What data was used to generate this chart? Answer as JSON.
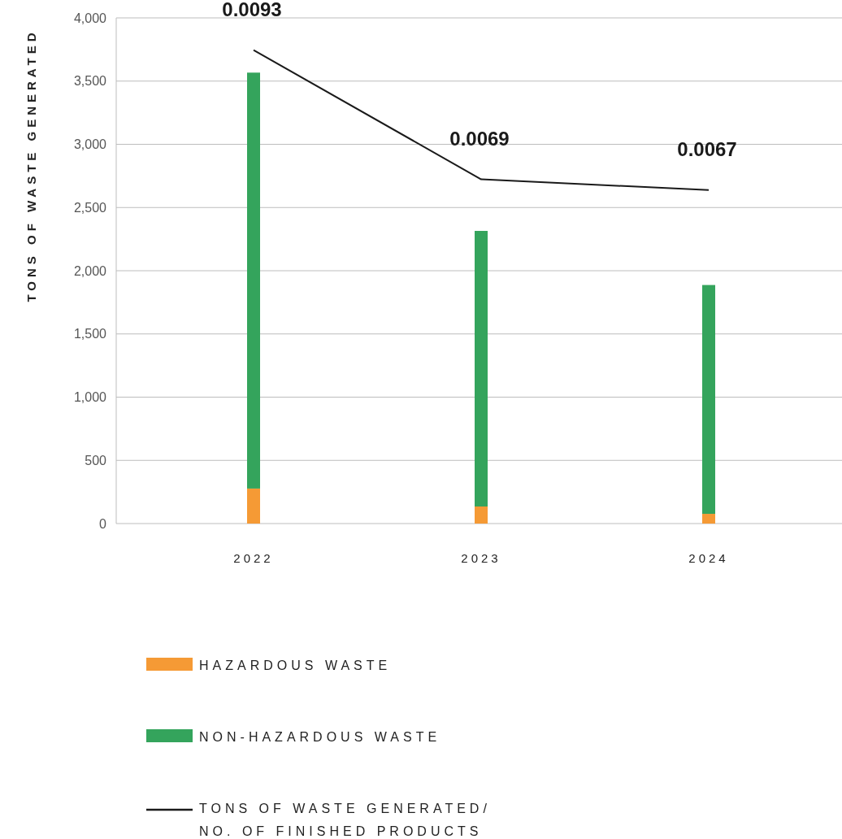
{
  "chart_data": {
    "type": "bar",
    "ylabel": "TONS OF WASTE GENERATED",
    "categories": [
      "2022",
      "2023",
      "2024"
    ],
    "stacked": true,
    "series": [
      {
        "name": "HAZARDOUS WASTE",
        "color": "#f59a35",
        "values": [
          277,
          135,
          77
        ]
      },
      {
        "name": "NON-HAZARDOUS WASTE",
        "color": "#34a45c",
        "values": [
          3290,
          2180,
          1810
        ]
      },
      {
        "name": "TONS OF WASTE GENERATED/ NO. OF FINISHED PRODUCTS",
        "type": "line",
        "axis": "y2",
        "color": "#1a1a1a",
        "values": [
          0.0093,
          0.0069,
          0.0067
        ],
        "value_labels": [
          "0.0093",
          "0.0069",
          "0.0067"
        ]
      }
    ],
    "ylim": [
      0,
      4000
    ],
    "yticks": [
      {
        "value": 0,
        "label": "0"
      },
      {
        "value": 500,
        "label": "500"
      },
      {
        "value": 1000,
        "label": "1,000"
      },
      {
        "value": 1500,
        "label": "1,500"
      },
      {
        "value": 2000,
        "label": "2,000"
      },
      {
        "value": 2500,
        "label": "2,500"
      },
      {
        "value": 3000,
        "label": "3,000"
      },
      {
        "value": 3500,
        "label": "3,500"
      },
      {
        "value": 4000,
        "label": "4,000"
      }
    ],
    "y2lim": [
      0.0005,
      0.0099
    ],
    "grid": "y",
    "legend": "bottom"
  }
}
